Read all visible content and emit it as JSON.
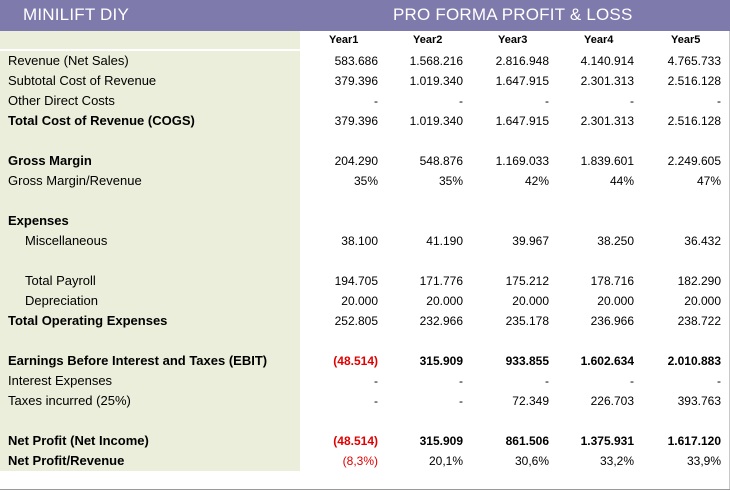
{
  "title_left": "MINILIFT DIY",
  "title_right": "PRO FORMA PROFIT & LOSS",
  "years": [
    "Year1",
    "Year2",
    "Year3",
    "Year4",
    "Year5"
  ],
  "rows": [
    {
      "label": "Revenue (Net Sales)",
      "values": [
        "583.686",
        "1.568.216",
        "2.816.948",
        "4.140.914",
        "4.765.733"
      ]
    },
    {
      "label": "Subtotal Cost of Revenue",
      "values": [
        "379.396",
        "1.019.340",
        "1.647.915",
        "2.301.313",
        "2.516.128"
      ]
    },
    {
      "label": "Other Direct Costs",
      "values": [
        "-",
        "-",
        "-",
        "-",
        "-"
      ]
    },
    {
      "label": "Total Cost of Revenue (COGS)",
      "values": [
        "379.396",
        "1.019.340",
        "1.647.915",
        "2.301.313",
        "2.516.128"
      ],
      "bold_label": true
    },
    {
      "label": "",
      "values": [
        "",
        "",
        "",
        "",
        ""
      ]
    },
    {
      "label": "Gross Margin",
      "values": [
        "204.290",
        "548.876",
        "1.169.033",
        "1.839.601",
        "2.249.605"
      ],
      "bold_label": true
    },
    {
      "label": "Gross Margin/Revenue",
      "values": [
        "35%",
        "35%",
        "42%",
        "44%",
        "47%"
      ]
    },
    {
      "label": "",
      "values": [
        "",
        "",
        "",
        "",
        ""
      ]
    },
    {
      "label": "Expenses",
      "values": [
        "",
        "",
        "",
        "",
        ""
      ],
      "bold_label": true
    },
    {
      "label": "Miscellaneous",
      "values": [
        "38.100",
        "41.190",
        "39.967",
        "38.250",
        "36.432"
      ],
      "indent": true
    },
    {
      "label": "",
      "values": [
        "",
        "",
        "",
        "",
        ""
      ]
    },
    {
      "label": "Total Payroll",
      "values": [
        "194.705",
        "171.776",
        "175.212",
        "178.716",
        "182.290"
      ],
      "indent": true
    },
    {
      "label": "Depreciation",
      "values": [
        "20.000",
        "20.000",
        "20.000",
        "20.000",
        "20.000"
      ],
      "indent": true
    },
    {
      "label": "Total Operating Expenses",
      "values": [
        "252.805",
        "232.966",
        "235.178",
        "236.966",
        "238.722"
      ],
      "bold_label": true
    },
    {
      "label": "",
      "values": [
        "",
        "",
        "",
        "",
        ""
      ]
    },
    {
      "label": "Earnings Before Interest and Taxes (EBIT)",
      "values": [
        "(48.514)",
        "315.909",
        "933.855",
        "1.602.634",
        "2.010.883"
      ],
      "bold_label": true,
      "bold_values": true,
      "red_first": true
    },
    {
      "label": "Interest Expenses",
      "values": [
        "-",
        "-",
        "-",
        "-",
        "-"
      ]
    },
    {
      "label": "Taxes incurred (25%)",
      "values": [
        "-",
        "-",
        "72.349",
        "226.703",
        "393.763"
      ]
    },
    {
      "label": "",
      "values": [
        "",
        "",
        "",
        "",
        ""
      ]
    },
    {
      "label": "Net Profit (Net Income)",
      "values": [
        "(48.514)",
        "315.909",
        "861.506",
        "1.375.931",
        "1.617.120"
      ],
      "bold_label": true,
      "bold_values": true,
      "red_first": true
    },
    {
      "label": "Net Profit/Revenue",
      "values": [
        "(8,3%)",
        "20,1%",
        "30,6%",
        "33,2%",
        "33,9%"
      ],
      "bold_label": true,
      "red_first": true
    }
  ],
  "colors": {
    "title_bg": "#7f7aac",
    "label_bg": "#eaeeda",
    "negative": "#e00000"
  }
}
